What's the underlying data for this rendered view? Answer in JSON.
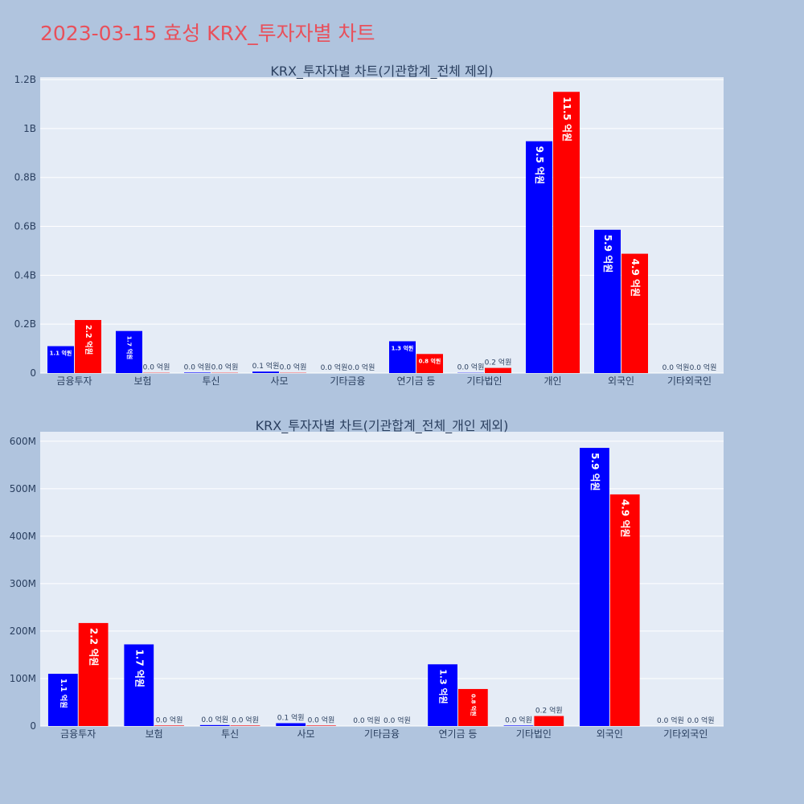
{
  "title": "2023-03-15 효성 KRX_투자자별 차트",
  "colors": {
    "series1": "#0000ff",
    "series2": "#ff0000",
    "plot_bg": "#e5ecf6",
    "page_bg": "#b0c4de",
    "title": "#e8505b"
  },
  "chart_data": [
    {
      "type": "bar",
      "title": "KRX_투자자별 차트(기관합계_전체 제외)",
      "categories": [
        "금융투자",
        "보험",
        "투신",
        "사모",
        "기타금융",
        "연기금 등",
        "기타법인",
        "개인",
        "외국인",
        "기타외국인"
      ],
      "series": [
        {
          "values": [
            110000000,
            172000000,
            2000000,
            6000000,
            0,
            130000000,
            1000000,
            948000000,
            586000000,
            0
          ],
          "labels": [
            "1.1 억원",
            "1.7 억원",
            "0.0 억원",
            "0.1 억원",
            "0.0 억원",
            "1.3 억원",
            "0.0 억원",
            "9.5 억원",
            "5.9 억원",
            "0.0 억원"
          ]
        },
        {
          "values": [
            217000000,
            1000000,
            1000000,
            1000000,
            0,
            78000000,
            21000000,
            1150000000,
            488000000,
            0
          ],
          "labels": [
            "2.2 억원",
            "0.0 억원",
            "0.0 억원",
            "0.0 억원",
            "0.0 억원",
            "0.8 억원",
            "0.2 억원",
            "11.5 억원",
            "4.9 억원",
            "0.0 억원"
          ]
        }
      ],
      "ylim": [
        0,
        1210000000
      ],
      "yticks": [
        0,
        200000000,
        400000000,
        600000000,
        800000000,
        1000000000,
        1200000000
      ],
      "ytick_labels": [
        "0",
        "0.2B",
        "0.4B",
        "0.6B",
        "0.8B",
        "1B",
        "1.2B"
      ],
      "grid": true
    },
    {
      "type": "bar",
      "title": "KRX_투자자별 차트(기관합계_전체_개인 제외)",
      "categories": [
        "금융투자",
        "보험",
        "투신",
        "사모",
        "기타금융",
        "연기금 등",
        "기타법인",
        "외국인",
        "기타외국인"
      ],
      "series": [
        {
          "values": [
            110000000,
            172000000,
            2000000,
            6000000,
            0,
            130000000,
            1000000,
            586000000,
            0
          ],
          "labels": [
            "1.1 억원",
            "1.7 억원",
            "0.0 억원",
            "0.1 억원",
            "0.0 억원",
            "1.3 억원",
            "0.0 억원",
            "5.9 억원",
            "0.0 억원"
          ]
        },
        {
          "values": [
            217000000,
            1000000,
            1000000,
            1000000,
            0,
            78000000,
            21000000,
            488000000,
            0
          ],
          "labels": [
            "2.2 억원",
            "0.0 억원",
            "0.0 억원",
            "0.0 억원",
            "0.0 억원",
            "0.8 억원",
            "0.2 억원",
            "4.9 억원",
            "0.0 억원"
          ]
        }
      ],
      "ylim": [
        0,
        620000000
      ],
      "yticks": [
        0,
        100000000,
        200000000,
        300000000,
        400000000,
        500000000,
        600000000
      ],
      "ytick_labels": [
        "0",
        "100M",
        "200M",
        "300M",
        "400M",
        "500M",
        "600M"
      ],
      "grid": true
    }
  ]
}
